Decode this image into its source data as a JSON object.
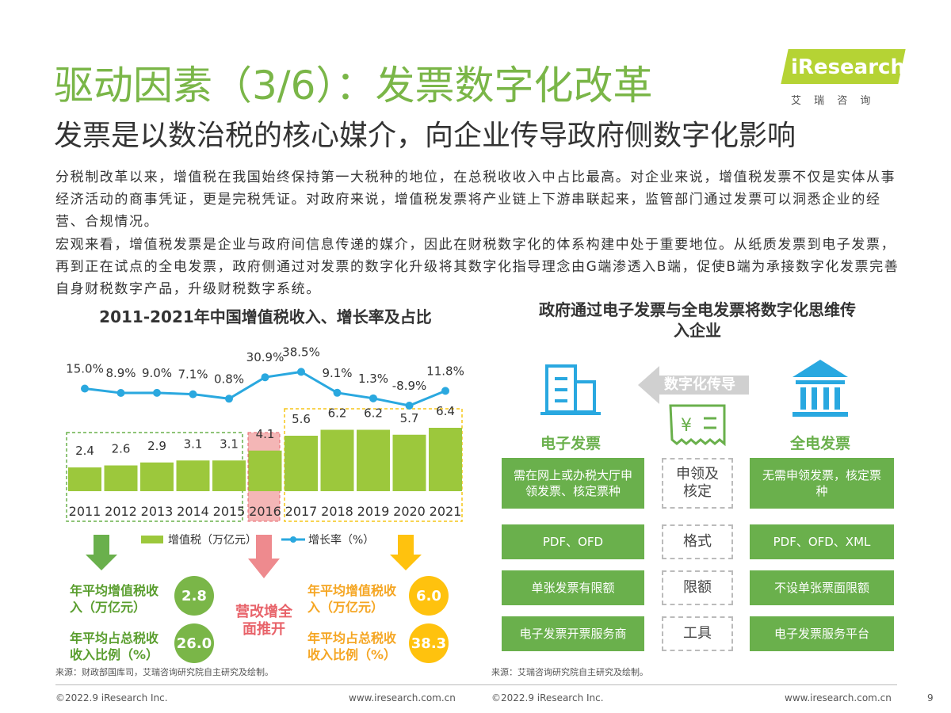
{
  "header": {
    "title": "驱动因素（3/6）：发票数字化改革",
    "subtitle": "发票是以数治税的核心媒介，向企业传导政府侧数字化影响",
    "logo": {
      "brand": "iResearch",
      "sub": "艾 瑞 咨 询"
    }
  },
  "body": {
    "paragraphs": [
      "分税制改革以来，增值税在我国始终保持第一大税种的地位，在总税收收入中占比最高。对企业来说，增值税发票不仅是实体从事经济活动的商事凭证，更是完税凭证。对政府来说，增值税发票将产业链上下游串联起来，监管部门通过发票可以洞悉企业的经营、合规情况。",
      "宏观来看，增值税发票是企业与政府间信息传递的媒介，因此在财税数字化的体系构建中处于重要地位。从纸质发票到电子发票，再到正在试点的全电发票，政府侧通过对发票的数字化升级将其数字化指导理念由G端渗透入B端，促使B端为承接数字化发票完善自身财税数字产品，升级财税数字系统。"
    ]
  },
  "chart_data": {
    "type": "bar",
    "title": "2011-2021年中国增值税收入、增长率及占比",
    "categories": [
      "2011",
      "2012",
      "2013",
      "2014",
      "2015",
      "2016",
      "2017",
      "2018",
      "2019",
      "2020",
      "2021"
    ],
    "series": [
      {
        "name": "增值税（万亿元）",
        "type": "bar",
        "color": "#9cc83c",
        "values": [
          2.4,
          2.6,
          2.9,
          3.1,
          3.1,
          4.1,
          5.6,
          6.2,
          6.2,
          5.7,
          6.4
        ]
      },
      {
        "name": "增长率（%）",
        "type": "line",
        "color": "#2aa8df",
        "values": [
          15.0,
          8.9,
          9.0,
          7.1,
          0.8,
          30.9,
          38.5,
          9.1,
          1.3,
          -8.9,
          11.8
        ],
        "value_labels": [
          "15.0%",
          "8.9%",
          "9.0%",
          "7.1%",
          "0.8%",
          "30.9%",
          "38.5%",
          "9.1%",
          "1.3%",
          "-8.9%",
          "11.8%"
        ]
      }
    ],
    "annotations": [
      {
        "text": "年平均增值税收入（万亿元）",
        "value": "2.8"
      },
      {
        "text": "年平均占总税收收入比例（%）",
        "value": "26.0"
      },
      {
        "text": "营改增全面推开"
      },
      {
        "text": "年平均增值税收入（万亿元）",
        "value": "6.0"
      },
      {
        "text": "年平均占总税收收入比例（%）",
        "value": "38.3"
      }
    ],
    "source": "来源：财政部国库司，艾瑞咨询研究院自主研究及绘制。"
  },
  "diagram": {
    "title": "政府通过电子发票与全电发票将数字化思维传入企业",
    "arrow_label": "数字化传导",
    "left_label": "电子发票",
    "right_label": "全电发票",
    "rows": [
      [
        "需在网上或办税大厅申领发票、核定票种",
        "申领及核定",
        "无需申领发票，核定票种"
      ],
      [
        "PDF、OFD",
        "格式",
        "PDF、OFD、XML"
      ],
      [
        "单张发票有限额",
        "限额",
        "不设单张票面限额"
      ],
      [
        "电子发票开票服务商",
        "工具",
        "电子发票服务平台"
      ]
    ],
    "source": "来源：艾瑞咨询研究院自主研究及绘制。"
  },
  "footer": {
    "copyright": [
      "©2022.9 iResearch Inc.",
      "©2022.9 iResearch Inc."
    ],
    "url": [
      "www.iresearch.com.cn",
      "www.iresearch.com.cn"
    ],
    "page": "9"
  }
}
